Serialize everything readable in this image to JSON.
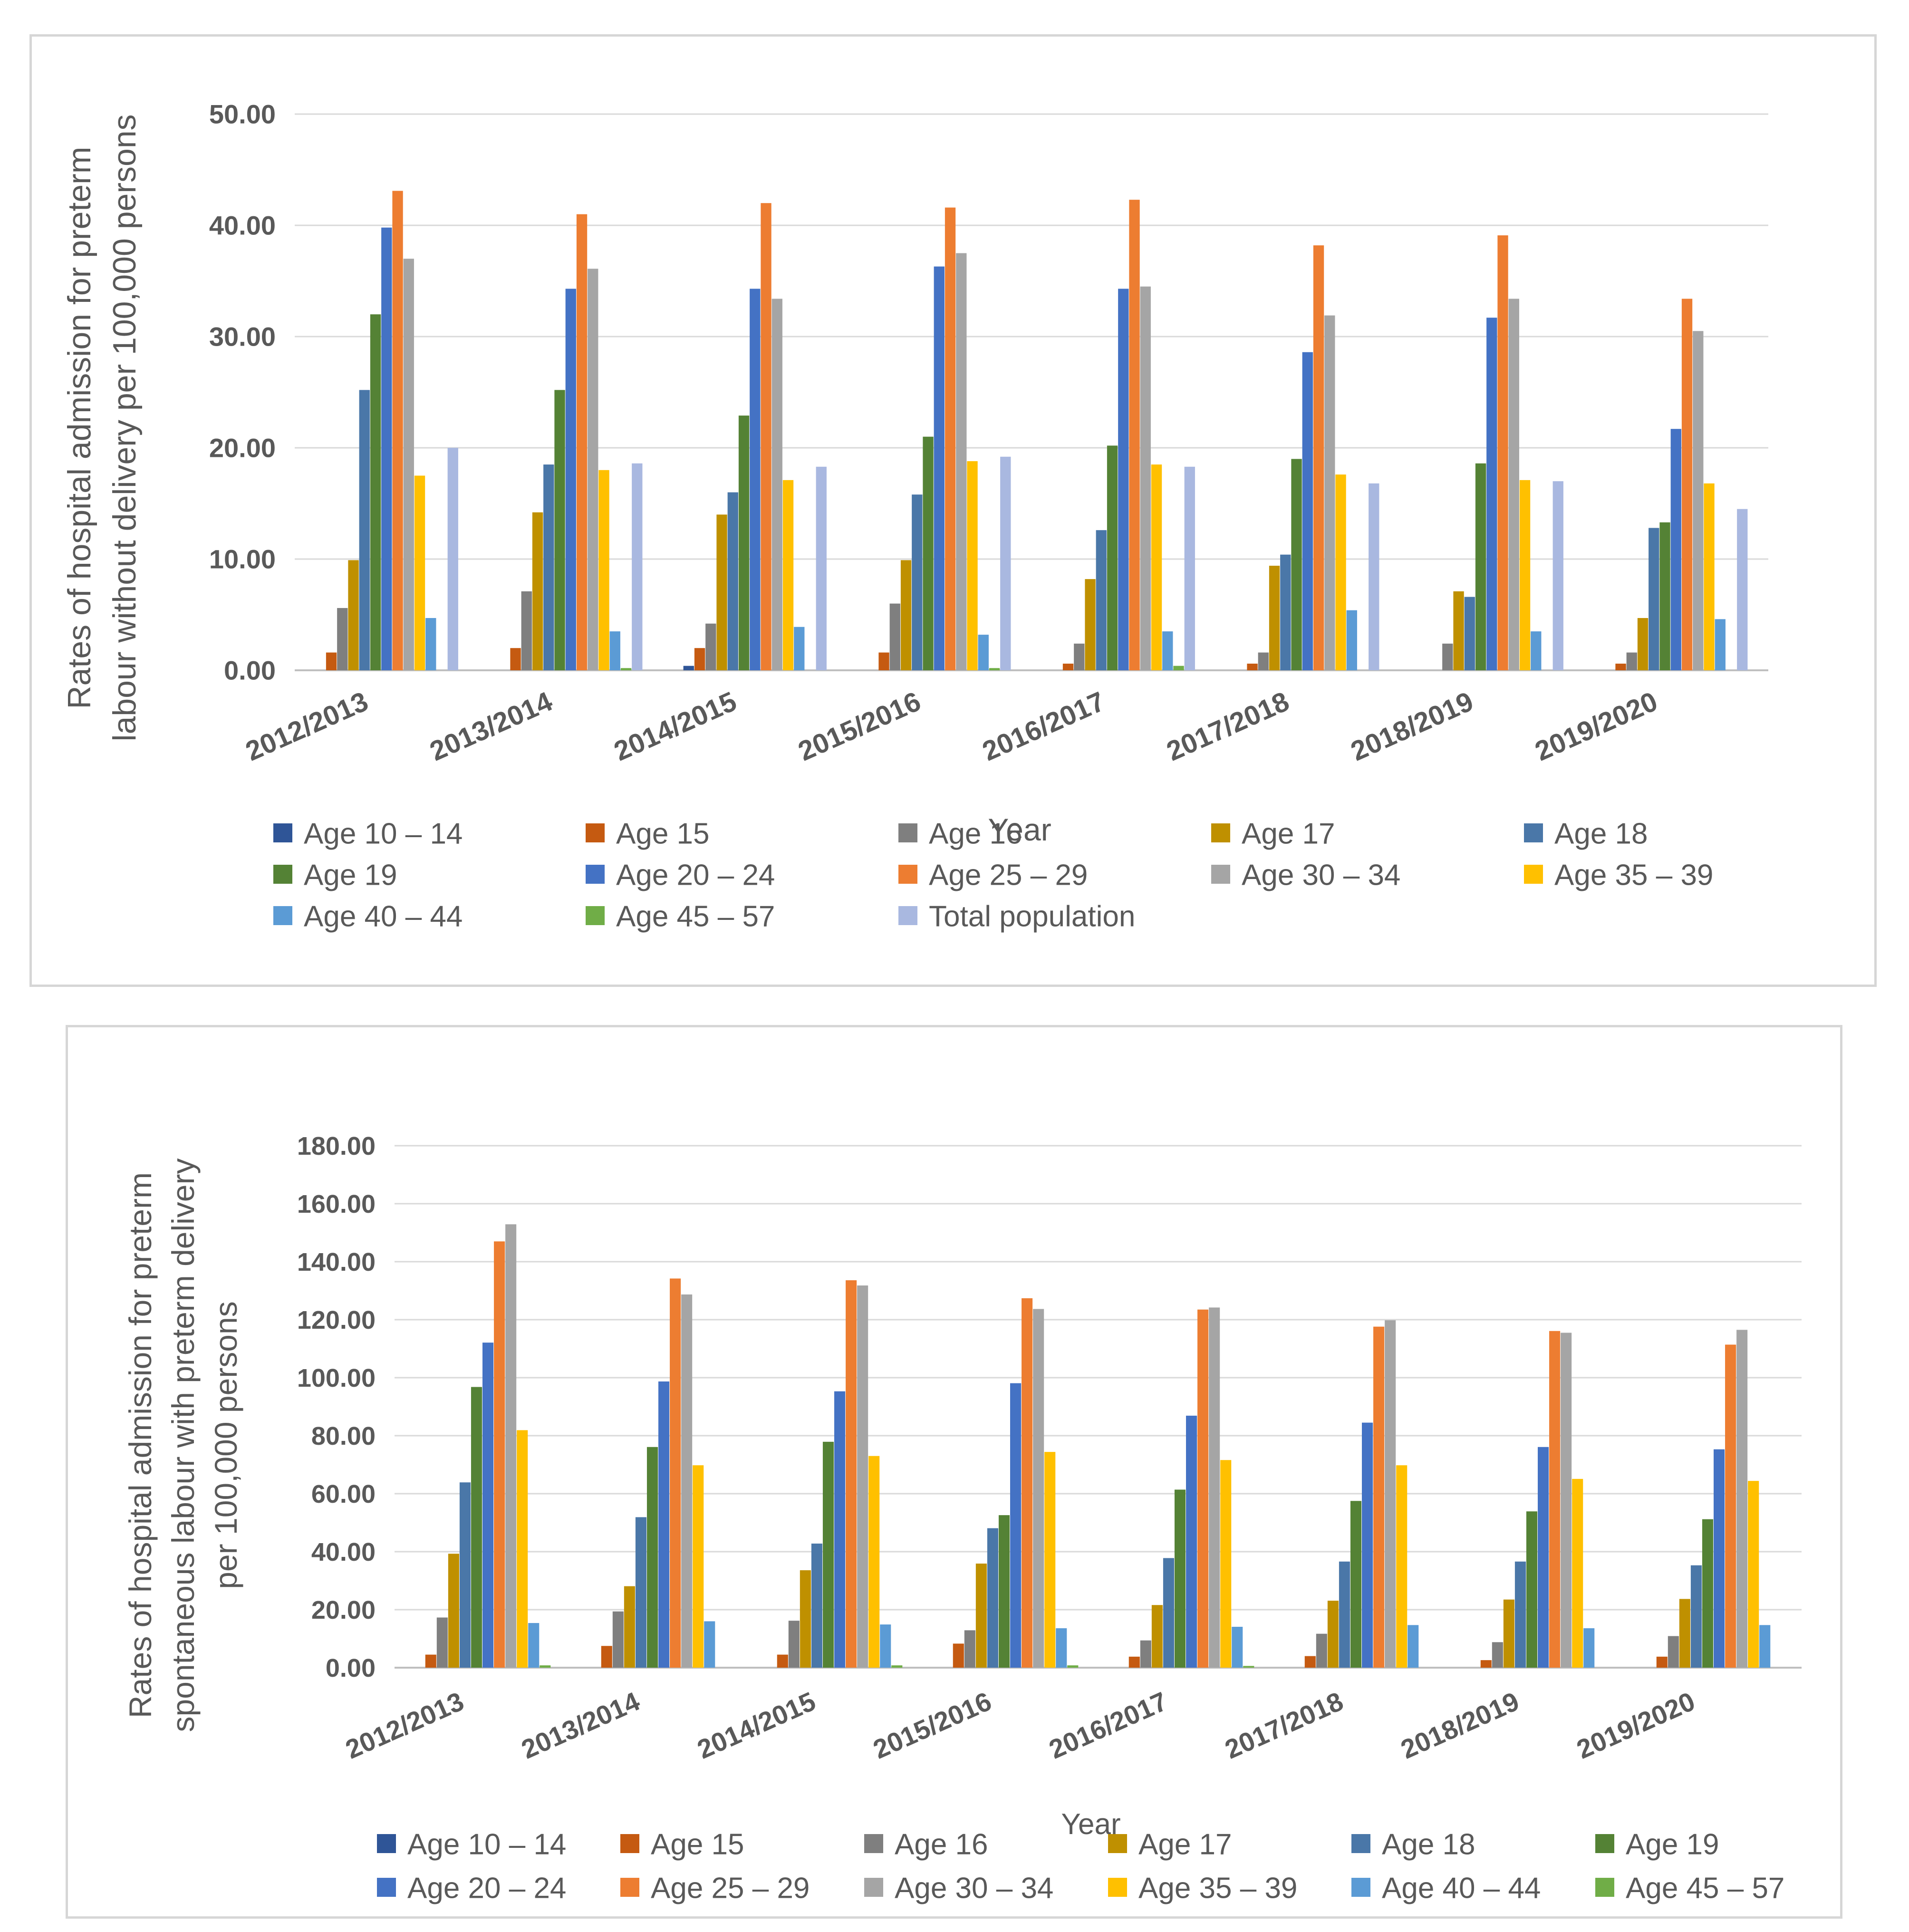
{
  "chart_data": [
    {
      "type": "bar",
      "title": "",
      "xlabel": "Year",
      "ylabel_lines": [
        "Rates of hospital admission for preterm",
        "labour without delivery per 100,000 persons"
      ],
      "ylim": [
        0,
        50
      ],
      "ytick_values": [
        0,
        10,
        20,
        30,
        40,
        50
      ],
      "ytick_labels": [
        "0.00",
        "10.00",
        "20.00",
        "30.00",
        "40.00",
        "50.00"
      ],
      "grid": true,
      "legend_position": "bottom",
      "categories": [
        "2012/2013",
        "2013/2014",
        "2014/2015",
        "2015/2016",
        "2016/2017",
        "2017/2018",
        "2018/2019",
        "2019/2020"
      ],
      "series": [
        {
          "name": "Age 10 – 14",
          "color": "#2f5597",
          "values": [
            0,
            0,
            0.4,
            0,
            0,
            0,
            0,
            0
          ]
        },
        {
          "name": "Age 15",
          "color": "#c55a11",
          "values": [
            1.6,
            2.0,
            2.0,
            1.6,
            0.6,
            0.6,
            0,
            0.6
          ]
        },
        {
          "name": "Age 16",
          "color": "#7f7f7f",
          "values": [
            5.6,
            7.1,
            4.2,
            6.0,
            2.4,
            1.6,
            2.4,
            1.6
          ]
        },
        {
          "name": "Age 17",
          "color": "#bf9000",
          "values": [
            9.9,
            14.2,
            14.0,
            9.9,
            8.2,
            9.4,
            7.1,
            4.7
          ]
        },
        {
          "name": "Age 18",
          "color": "#4a77a8",
          "values": [
            25.2,
            18.5,
            16.0,
            15.8,
            12.6,
            10.4,
            6.6,
            12.8
          ]
        },
        {
          "name": "Age 19",
          "color": "#548235",
          "values": [
            32.0,
            25.2,
            22.9,
            21.0,
            20.2,
            19.0,
            18.6,
            13.3
          ]
        },
        {
          "name": "Age 20 – 24",
          "color": "#4472c4",
          "values": [
            39.8,
            34.3,
            34.3,
            36.3,
            34.3,
            28.6,
            31.7,
            21.7
          ]
        },
        {
          "name": "Age 25 – 29",
          "color": "#ed7d31",
          "values": [
            43.1,
            41.0,
            42.0,
            41.6,
            42.3,
            38.2,
            39.1,
            33.4
          ]
        },
        {
          "name": "Age 30 – 34",
          "color": "#a5a5a5",
          "values": [
            37.0,
            36.1,
            33.4,
            37.5,
            34.5,
            31.9,
            33.4,
            30.5
          ]
        },
        {
          "name": "Age 35 – 39",
          "color": "#ffc000",
          "values": [
            17.5,
            18.0,
            17.1,
            18.8,
            18.5,
            17.6,
            17.1,
            16.8
          ]
        },
        {
          "name": "Age 40 – 44",
          "color": "#5b9bd5",
          "values": [
            4.7,
            3.5,
            3.9,
            3.2,
            3.5,
            5.4,
            3.5,
            4.6
          ]
        },
        {
          "name": "Age 45 – 57",
          "color": "#70ad47",
          "values": [
            0,
            0.2,
            0,
            0.2,
            0.4,
            0,
            0,
            0
          ]
        },
        {
          "name": "Total population",
          "color": "#a9b8e0",
          "values": [
            20.0,
            18.6,
            18.3,
            19.2,
            18.3,
            16.8,
            17.0,
            14.5
          ]
        }
      ]
    },
    {
      "type": "bar",
      "title": "",
      "xlabel": "Year",
      "ylabel_lines": [
        "Rates of hospital admission for preterm",
        "spontaneous labour with preterm delivery",
        "per 100,000 persons"
      ],
      "ylim": [
        0,
        180
      ],
      "ytick_values": [
        0,
        20,
        40,
        60,
        80,
        100,
        120,
        140,
        160,
        180
      ],
      "ytick_labels": [
        "0.00",
        "20.00",
        "40.00",
        "60.00",
        "80.00",
        "100.00",
        "120.00",
        "140.00",
        "160.00",
        "180.00"
      ],
      "grid": true,
      "legend_position": "bottom",
      "categories": [
        "2012/2013",
        "2013/2014",
        "2014/2015",
        "2015/2016",
        "2016/2017",
        "2017/2018",
        "2018/2019",
        "2019/2020"
      ],
      "series": [
        {
          "name": "Age 10 – 14",
          "color": "#2f5597",
          "values": [
            0,
            0,
            0,
            0,
            0,
            0,
            0,
            0
          ]
        },
        {
          "name": "Age 15",
          "color": "#c55a11",
          "values": [
            4.5,
            7.5,
            4.5,
            8.3,
            3.8,
            4.0,
            2.6,
            3.8
          ]
        },
        {
          "name": "Age 16",
          "color": "#7f7f7f",
          "values": [
            17.3,
            19.4,
            16.2,
            12.9,
            9.4,
            11.7,
            8.8,
            10.9
          ]
        },
        {
          "name": "Age 17",
          "color": "#bf9000",
          "values": [
            39.3,
            28.1,
            33.6,
            35.9,
            21.6,
            23.1,
            23.5,
            23.7
          ]
        },
        {
          "name": "Age 18",
          "color": "#4a77a8",
          "values": [
            63.9,
            51.9,
            42.8,
            48.1,
            37.8,
            36.6,
            36.6,
            35.3
          ]
        },
        {
          "name": "Age 19",
          "color": "#548235",
          "values": [
            96.8,
            76.1,
            77.9,
            52.6,
            61.4,
            57.5,
            53.9,
            51.2
          ]
        },
        {
          "name": "Age 20 – 24",
          "color": "#4472c4",
          "values": [
            112.1,
            98.7,
            95.3,
            98.1,
            86.9,
            84.5,
            76.1,
            75.3
          ]
        },
        {
          "name": "Age 25 – 29",
          "color": "#ed7d31",
          "values": [
            147.0,
            134.2,
            133.6,
            127.4,
            123.5,
            117.6,
            116.1,
            111.4
          ]
        },
        {
          "name": "Age 30 – 34",
          "color": "#a5a5a5",
          "values": [
            152.9,
            128.7,
            131.8,
            123.7,
            124.2,
            119.8,
            115.5,
            116.5
          ]
        },
        {
          "name": "Age 35 – 39",
          "color": "#ffc000",
          "values": [
            81.9,
            69.8,
            73.0,
            74.4,
            71.6,
            69.8,
            65.1,
            64.4
          ]
        },
        {
          "name": "Age 40 – 44",
          "color": "#5b9bd5",
          "values": [
            15.4,
            16.0,
            14.9,
            13.6,
            14.1,
            14.7,
            13.6,
            14.7
          ]
        },
        {
          "name": "Age 45 – 57",
          "color": "#70ad47",
          "values": [
            0.8,
            0,
            0.8,
            0.8,
            0.6,
            0,
            0,
            0
          ]
        }
      ]
    }
  ]
}
